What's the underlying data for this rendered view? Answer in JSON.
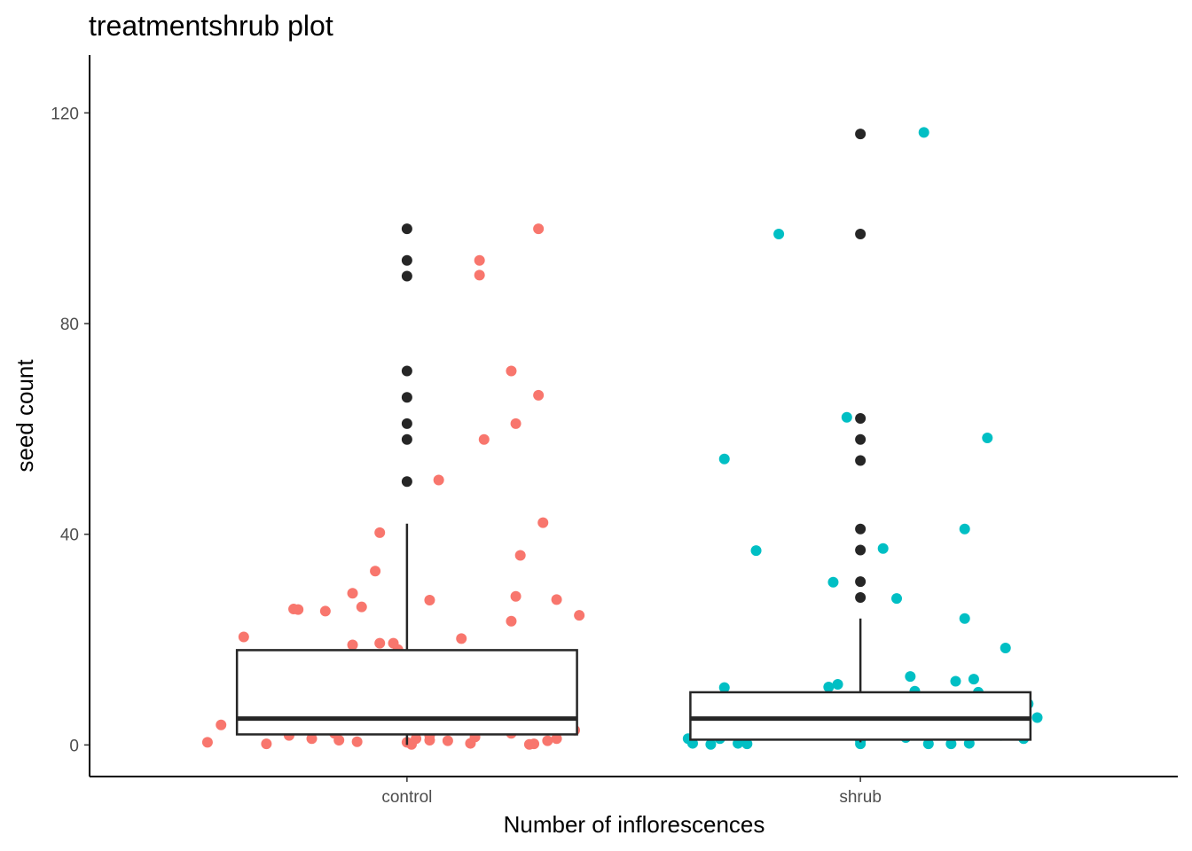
{
  "chart_data": {
    "type": "boxplot",
    "title": "treatmentshrub plot",
    "xlabel": "Number of inflorescences",
    "ylabel": "seed count",
    "ylim": [
      -6,
      131
    ],
    "y_ticks": [
      0,
      40,
      80,
      120
    ],
    "categories": [
      "control",
      "shrub"
    ],
    "grid": false,
    "legend": "none",
    "colors": {
      "control": "#F8766D",
      "shrub": "#00BFC4",
      "box": "#262626",
      "outlier": "#262626"
    },
    "boxes": [
      {
        "name": "control",
        "min": 0,
        "q1": 2,
        "median": 5,
        "q3": 18,
        "max": 42,
        "outliers": [
          50,
          58,
          61,
          66,
          71,
          89,
          92,
          98
        ]
      },
      {
        "name": "shrub",
        "min": 0.5,
        "q1": 1,
        "median": 5,
        "q3": 10,
        "max": 24,
        "outliers": [
          28,
          31,
          37,
          41,
          54,
          58,
          62,
          97,
          116
        ]
      }
    ],
    "jitter_points": [
      {
        "group": "control",
        "points": [
          [
            -0.44,
            0.5
          ],
          [
            -0.41,
            3.8
          ],
          [
            -0.36,
            20.5
          ],
          [
            -0.31,
            0.2
          ],
          [
            -0.26,
            1.8
          ],
          [
            -0.25,
            25.8
          ],
          [
            -0.24,
            25.7
          ],
          [
            -0.21,
            1.2
          ],
          [
            -0.18,
            25.4
          ],
          [
            -0.16,
            2.2
          ],
          [
            -0.15,
            0.9
          ],
          [
            -0.12,
            19
          ],
          [
            -0.12,
            28.8
          ],
          [
            -0.11,
            0.6
          ],
          [
            -0.1,
            26.2
          ],
          [
            -0.07,
            33
          ],
          [
            -0.06,
            40.3
          ],
          [
            -0.06,
            19.3
          ],
          [
            -0.03,
            19.3
          ],
          [
            -0.02,
            18.1
          ],
          [
            0.0,
            0.5
          ],
          [
            0.01,
            0.1
          ],
          [
            0.02,
            1.2
          ],
          [
            0.05,
            0.9
          ],
          [
            0.05,
            1.8
          ],
          [
            0.07,
            50.3
          ],
          [
            0.05,
            27.5
          ],
          [
            0.09,
            0.8
          ],
          [
            0.12,
            20.2
          ],
          [
            0.14,
            0.3
          ],
          [
            0.15,
            1.5
          ],
          [
            0.16,
            89.2
          ],
          [
            0.16,
            92
          ],
          [
            0.17,
            58
          ],
          [
            0.23,
            23.5
          ],
          [
            0.23,
            2.2
          ],
          [
            0.23,
            71
          ],
          [
            0.24,
            28.2
          ],
          [
            0.24,
            61
          ],
          [
            0.25,
            36
          ],
          [
            0.27,
            0.1
          ],
          [
            0.28,
            0.2
          ],
          [
            0.29,
            98
          ],
          [
            0.29,
            66.4
          ],
          [
            0.3,
            42.2
          ],
          [
            0.31,
            0.8
          ],
          [
            0.33,
            27.6
          ],
          [
            0.33,
            1.2
          ],
          [
            0.37,
            2.8
          ],
          [
            0.38,
            24.6
          ]
        ]
      },
      {
        "group": "shrub",
        "points": [
          [
            -0.38,
            1.2
          ],
          [
            -0.37,
            0.3
          ],
          [
            -0.33,
            0.1
          ],
          [
            -0.31,
            1.2
          ],
          [
            -0.3,
            10.9
          ],
          [
            -0.3,
            54.3
          ],
          [
            -0.27,
            0.3
          ],
          [
            -0.25,
            0.2
          ],
          [
            -0.23,
            36.9
          ],
          [
            -0.18,
            97
          ],
          [
            -0.07,
            11
          ],
          [
            -0.06,
            30.9
          ],
          [
            -0.05,
            11.5
          ],
          [
            -0.03,
            62.2
          ],
          [
            0.0,
            0.2
          ],
          [
            0.0,
            0.8
          ],
          [
            0.05,
            37.3
          ],
          [
            0.08,
            27.8
          ],
          [
            0.1,
            1.4
          ],
          [
            0.11,
            13
          ],
          [
            0.12,
            10.2
          ],
          [
            0.14,
            116.3
          ],
          [
            0.15,
            0.2
          ],
          [
            0.2,
            0.2
          ],
          [
            0.21,
            12.1
          ],
          [
            0.23,
            24
          ],
          [
            0.23,
            41
          ],
          [
            0.24,
            0.3
          ],
          [
            0.25,
            12.5
          ],
          [
            0.26,
            10
          ],
          [
            0.28,
            58.3
          ],
          [
            0.31,
            1.8
          ],
          [
            0.32,
            18.4
          ],
          [
            0.36,
            1.2
          ],
          [
            0.37,
            7.8
          ],
          [
            0.39,
            5.2
          ]
        ]
      }
    ]
  }
}
